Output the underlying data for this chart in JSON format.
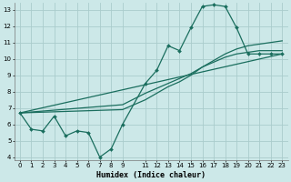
{
  "xlabel": "Humidex (Indice chaleur)",
  "bg_color": "#cce8e8",
  "grid_color": "#aacccc",
  "line_color": "#1a6e5e",
  "xlim": [
    -0.5,
    23.5
  ],
  "ylim": [
    3.8,
    13.4
  ],
  "yticks": [
    4,
    5,
    6,
    7,
    8,
    9,
    10,
    11,
    12,
    13
  ],
  "xticks": [
    0,
    1,
    2,
    3,
    4,
    5,
    6,
    7,
    8,
    9,
    11,
    12,
    13,
    14,
    15,
    16,
    17,
    18,
    19,
    20,
    21,
    22,
    23
  ],
  "series1_x": [
    0,
    1,
    2,
    3,
    4,
    5,
    6,
    7,
    8,
    9,
    11,
    12,
    13,
    14,
    15,
    16,
    17,
    18,
    19,
    20,
    21,
    22,
    23
  ],
  "series1_y": [
    6.7,
    5.7,
    5.6,
    6.5,
    5.3,
    5.6,
    5.5,
    4.0,
    4.5,
    6.0,
    8.5,
    9.3,
    10.8,
    10.5,
    11.9,
    13.2,
    13.3,
    13.2,
    11.9,
    10.3,
    10.3,
    10.3,
    10.3
  ],
  "series2_x": [
    0,
    9,
    11,
    12,
    13,
    14,
    15,
    16,
    17,
    18,
    19,
    20,
    21,
    22,
    23
  ],
  "series2_y": [
    6.7,
    6.9,
    7.5,
    7.9,
    8.3,
    8.6,
    9.0,
    9.5,
    9.9,
    10.3,
    10.6,
    10.8,
    10.9,
    11.0,
    11.1
  ],
  "series3_x": [
    0,
    9,
    11,
    12,
    13,
    14,
    15,
    16,
    17,
    18,
    19,
    20,
    21,
    22,
    23
  ],
  "series3_y": [
    6.7,
    7.2,
    7.9,
    8.2,
    8.5,
    8.8,
    9.1,
    9.5,
    9.8,
    10.1,
    10.3,
    10.4,
    10.5,
    10.5,
    10.5
  ],
  "series4_x": [
    0,
    23
  ],
  "series4_y": [
    6.7,
    10.3
  ]
}
